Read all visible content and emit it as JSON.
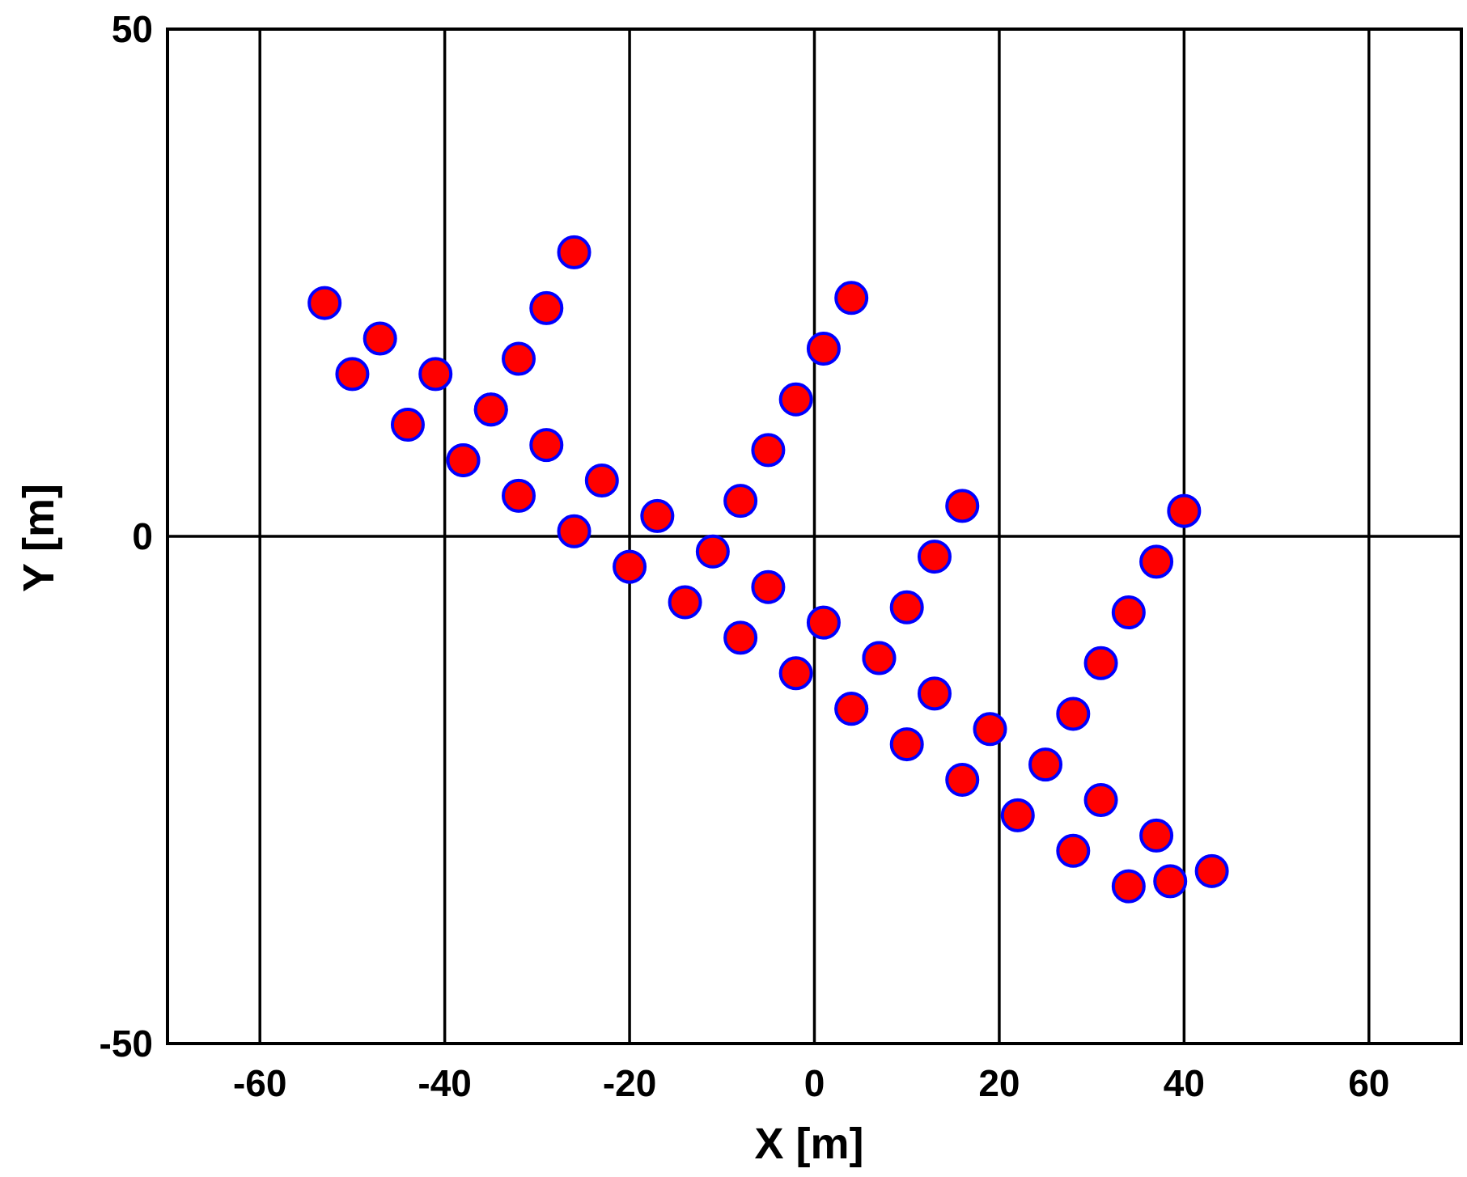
{
  "chart_data": {
    "type": "scatter",
    "title": "",
    "xlabel": "X [m]",
    "ylabel": "Y [m]",
    "xlim": [
      -70,
      70
    ],
    "ylim": [
      -50,
      50
    ],
    "xticks": [
      -60,
      -40,
      -20,
      0,
      20,
      40,
      60
    ],
    "yticks": [
      -50,
      0,
      50
    ],
    "grid": true,
    "legend": "none",
    "colors": {
      "marker_fill": "#ff0000",
      "marker_edge": "#0000ff",
      "grid": "#000000",
      "axes": "#000000"
    },
    "series": [
      {
        "points": [
          [
            -53,
            23
          ],
          [
            -47,
            19.5
          ],
          [
            -50,
            16
          ],
          [
            -41,
            16
          ],
          [
            -44,
            11
          ],
          [
            -35,
            12.5
          ],
          [
            -38,
            7.5
          ],
          [
            -29,
            9
          ],
          [
            -32,
            4
          ],
          [
            -23,
            5.5
          ],
          [
            -26,
            0.5
          ],
          [
            -17,
            2
          ],
          [
            -20,
            -3
          ],
          [
            -11,
            -1.5
          ],
          [
            -14,
            -6.5
          ],
          [
            -5,
            -5
          ],
          [
            -8,
            -10
          ],
          [
            1,
            -8.5
          ],
          [
            -2,
            -13.5
          ],
          [
            7,
            -12
          ],
          [
            4,
            -17
          ],
          [
            13,
            -15.5
          ],
          [
            10,
            -20.5
          ],
          [
            19,
            -19
          ],
          [
            16,
            -24
          ],
          [
            25,
            -22.5
          ],
          [
            22,
            -27.5
          ],
          [
            31,
            -26
          ],
          [
            28,
            -31
          ],
          [
            37,
            -29.5
          ],
          [
            34,
            -34.5
          ],
          [
            38.5,
            -34
          ],
          [
            43,
            -33
          ],
          [
            -26,
            28
          ],
          [
            -29,
            22.5
          ],
          [
            -32,
            17.5
          ],
          [
            -35,
            12.5
          ],
          [
            -38,
            7.5
          ],
          [
            4,
            23.5
          ],
          [
            1,
            18.5
          ],
          [
            -2,
            13.5
          ],
          [
            -5,
            8.5
          ],
          [
            -8,
            3.5
          ],
          [
            16,
            3
          ],
          [
            13,
            -2
          ],
          [
            10,
            -7
          ],
          [
            7,
            -12
          ],
          [
            4,
            -17
          ],
          [
            40,
            2.5
          ],
          [
            37,
            -2.5
          ],
          [
            34,
            -7.5
          ],
          [
            31,
            -12.5
          ],
          [
            28,
            -17.5
          ]
        ]
      }
    ]
  }
}
